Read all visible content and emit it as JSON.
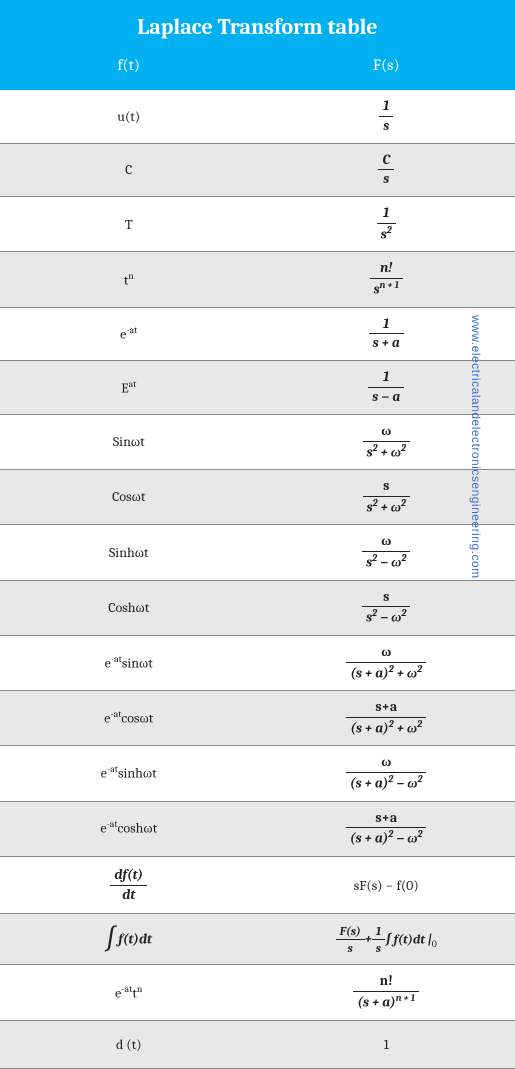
{
  "title": "Laplace Transform table",
  "col_left": "f(t)",
  "col_right": "F(s)",
  "watermark": "www.electricalandelectronicsengineering.com",
  "colors": {
    "header_bg": "#00b0f0",
    "header_text": "#ffffff",
    "alt_row_bg": "#e8e8e8",
    "border": "#888888",
    "text": "#222222",
    "watermark": "#3b6fd6"
  },
  "rows": [
    {
      "ft_html": "u(t)",
      "fs_num": "1",
      "fs_den": "s",
      "alt": false
    },
    {
      "ft_html": "C",
      "fs_num": "C",
      "fs_den": "s",
      "alt": true
    },
    {
      "ft_html": "T",
      "fs_num": "1",
      "fs_den": "s<sup class='sup'>2</sup>",
      "alt": false
    },
    {
      "ft_html": "t<sup class='sup'>n</sup>",
      "fs_num": "n!",
      "fs_den": "s<sup class='sup'>n + 1</sup>",
      "alt": true
    },
    {
      "ft_html": "e<sup class='sup'>-at</sup>",
      "fs_num": "1",
      "fs_den": "s + a",
      "alt": false
    },
    {
      "ft_html": "E<sup class='sup'>at</sup>",
      "fs_num": "1",
      "fs_den": "s − a",
      "alt": true
    },
    {
      "ft_html": "Sinωt",
      "fs_num": "<span class='plain'>ω</span>",
      "fs_den": "s<sup class='sup'>2</sup> + ω<sup class='sup'>2</sup>",
      "alt": false
    },
    {
      "ft_html": "Cosωt",
      "fs_num": "<span class='plain'>s</span>",
      "fs_den": "s<sup class='sup'>2</sup> + ω<sup class='sup'>2</sup>",
      "alt": true
    },
    {
      "ft_html": "Sinhωt",
      "fs_num": "<span class='plain'>ω</span>",
      "fs_den": "s<sup class='sup'>2</sup> − ω<sup class='sup'>2</sup>",
      "alt": false
    },
    {
      "ft_html": "Coshωt",
      "fs_num": "<span class='plain'>s</span>",
      "fs_den": "s<sup class='sup'>2</sup> − ω<sup class='sup'>2</sup>",
      "alt": true
    },
    {
      "ft_html": "e<sup class='sup'>-at</sup>sinωt",
      "fs_num": "<span class='plain'>ω</span>",
      "fs_den": "(s + a)<sup class='sup'>2</sup> + ω<sup class='sup'>2</sup>",
      "alt": false
    },
    {
      "ft_html": "e<sup class='sup'>-at</sup>cosωt",
      "fs_num": "<span class='plain'>s+a</span>",
      "fs_den": "(s + a)<sup class='sup'>2</sup> + ω<sup class='sup'>2</sup>",
      "alt": true
    },
    {
      "ft_html": "e<sup class='sup'>-at</sup>sinhωt",
      "fs_num": "<span class='plain'>ω</span>",
      "fs_den": "(s + a)<sup class='sup'>2</sup> − ω<sup class='sup'>2</sup>",
      "alt": false
    },
    {
      "ft_html": "e<sup class='sup'>-at</sup>coshωt",
      "fs_num": "<span class='plain'>s+a</span>",
      "fs_den": "(s + a)<sup class='sup'>2</sup> − ω<sup class='sup'>2</sup>",
      "alt": true
    },
    {
      "special": "deriv",
      "alt": false,
      "fs_text": "sF(s) − f(0)"
    },
    {
      "special": "integral",
      "alt": true
    },
    {
      "ft_html": "e<sup class='sup'>-at</sup>t<sup class='sup'>n</sup>",
      "fs_num": "<span class='plain'>n!</span>",
      "fs_den": "(s + a)<sup class='sup'>n + 1</sup>",
      "alt": false
    },
    {
      "ft_html": "d (t)",
      "fs_text": "1",
      "alt": true
    }
  ],
  "deriv": {
    "num": "df(t)",
    "den": "dt"
  },
  "integral": {
    "left": "∫ f(t)dt",
    "right_frac1_num": "F(s)",
    "right_frac1_den": "s",
    "right_frac2_num": "1",
    "right_frac2_den": "s",
    "right_tail": "∫ f(t)dt |",
    "right_sub": "0"
  }
}
